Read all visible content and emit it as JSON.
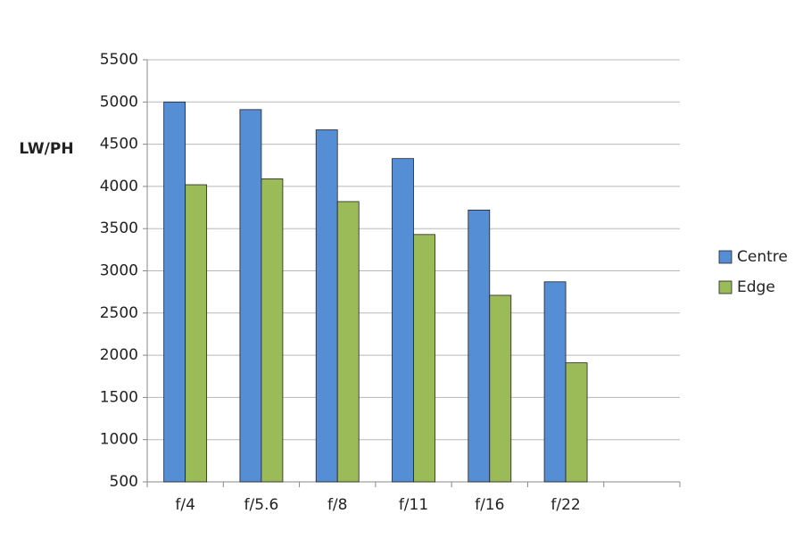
{
  "chart_data": {
    "type": "bar",
    "y_label": "LW/PH",
    "categories": [
      "f/4",
      "f/5.6",
      "f/8",
      "f/11",
      "f/16",
      "f/22",
      null
    ],
    "series": [
      {
        "name": "Centre",
        "color": "#558ed5",
        "values": [
          5000,
          4910,
          4670,
          4330,
          3720,
          2870,
          null
        ]
      },
      {
        "name": "Edge",
        "color": "#9bbb59",
        "values": [
          4020,
          4090,
          3820,
          3430,
          2710,
          1910,
          null
        ]
      }
    ],
    "ylim": [
      500,
      5500
    ],
    "yticks": [
      500,
      1000,
      1500,
      2000,
      2500,
      3000,
      3500,
      4000,
      4500,
      5000,
      5500
    ],
    "grid": true,
    "legend": "right"
  }
}
